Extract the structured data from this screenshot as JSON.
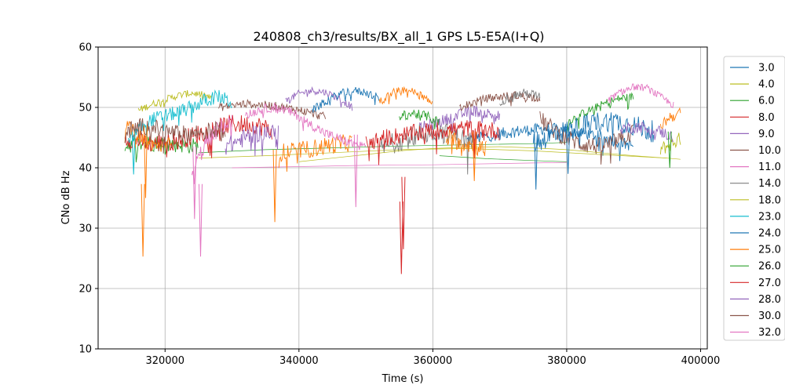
{
  "chart_data": {
    "type": "line",
    "title": "240808_ch3/results/BX_all_1 GPS L5-E5A(I+Q)",
    "xlabel": "Time (s)",
    "ylabel": "CNo dB Hz",
    "xlim": [
      310000,
      401000
    ],
    "ylim": [
      10,
      60
    ],
    "xticks": [
      320000,
      340000,
      360000,
      380000,
      400000
    ],
    "yticks": [
      10,
      20,
      30,
      40,
      50,
      60
    ],
    "grid": true,
    "legend_position": "outside-right",
    "series": [
      {
        "name": "3.0",
        "color": "#1f77b4",
        "segments": [
          {
            "x": [
              365000,
              366000,
              367000,
              368000,
              369000,
              370000,
              371000,
              372000,
              373000,
              374000,
              375000,
              376000,
              377000,
              378000,
              379000,
              380000,
              381000,
              382000,
              383000,
              384000,
              385000,
              386000,
              387000,
              388000,
              389000,
              390000
            ],
            "y": [
              44.5,
              44.8,
              45.0,
              45.2,
              45.4,
              45.6,
              45.8,
              46.0,
              46.1,
              46.2,
              46.3,
              46.4,
              46.5,
              46.4,
              46.3,
              46.2,
              46.0,
              45.8,
              45.6,
              45.4,
              45.1,
              44.8,
              44.5,
              44.2,
              43.9,
              43.6
            ],
            "noise": 1.0
          }
        ]
      },
      {
        "name": "4.0",
        "color": "#bcbd22",
        "segments": [
          {
            "x": [
              316000,
              318000,
              320000,
              322000,
              324000,
              326000,
              327000
            ],
            "y": [
              49.5,
              50.5,
              51.3,
              52.0,
              52.4,
              52.0,
              51.3
            ],
            "noise": 0.6
          },
          {
            "x": [
              325000,
              335000,
              345000,
              355000,
              365000,
              375000,
              385000,
              395000
            ],
            "y": [
              41.6,
              42.0,
              42.5,
              43.0,
              43.2,
              42.8,
              42.2,
              41.6
            ],
            "thin": true
          },
          {
            "x": [
              394000,
              395000,
              396000,
              397000
            ],
            "y": [
              43.0,
              43.6,
              44.2,
              44.8
            ],
            "noise": 1.2
          }
        ]
      },
      {
        "name": "6.0",
        "color": "#2ca02c",
        "segments": [
          {
            "x": [
              314000,
              318000,
              322000,
              325000
            ],
            "y": [
              43.8,
              44.1,
              43.9,
              43.5
            ],
            "noise": 1.4
          },
          {
            "x": [
              325000,
              335000,
              345000,
              355000,
              365000,
              375000,
              380000
            ],
            "y": [
              42.5,
              43.0,
              43.3,
              43.6,
              43.8,
              44.0,
              44.2
            ],
            "thin": true
          },
          {
            "x": [
              380000,
              382000,
              384000,
              386000,
              388000,
              390000
            ],
            "y": [
              47.5,
              48.8,
              49.8,
              50.8,
              51.5,
              51.8
            ],
            "noise": 0.7
          }
        ]
      },
      {
        "name": "8.0",
        "color": "#d62728",
        "segments": [
          {
            "x": [
              314000,
              318000,
              322000,
              326000,
              330000,
              334000,
              336000
            ],
            "y": [
              45.0,
              44.0,
              44.5,
              46.0,
              47.3,
              47.0,
              46.2
            ],
            "noise": 1.6
          }
        ]
      },
      {
        "name": "9.0",
        "color": "#9467bd",
        "segments": [
          {
            "x": [
              338000,
              340000,
              342000,
              344000,
              346000,
              348000
            ],
            "y": [
              51.0,
              52.3,
              52.8,
              52.5,
              51.5,
              50.0
            ],
            "noise": 0.6
          },
          {
            "x": [
              358000,
              362000,
              366000,
              370000
            ],
            "y": [
              46.5,
              48.0,
              49.5,
              48.5
            ],
            "noise": 1.0
          }
        ]
      },
      {
        "name": "10.0",
        "color": "#8c564b",
        "segments": [
          {
            "x": [
              328000,
              332000,
              336000,
              340000,
              344000
            ],
            "y": [
              50.0,
              50.6,
              50.3,
              49.6,
              48.4
            ],
            "noise": 0.7
          },
          {
            "x": [
              364000,
              368000,
              372000,
              376000
            ],
            "y": [
              50.0,
              51.5,
              52.0,
              51.6
            ],
            "noise": 0.7
          },
          {
            "x": [
              376000,
              379000,
              382000,
              385000,
              388000,
              390000
            ],
            "y": [
              48.0,
              45.5,
              44.0,
              43.5,
              44.5,
              46.0
            ],
            "noise": 1.5
          }
        ]
      },
      {
        "name": "11.0",
        "color": "#e377c2",
        "segments": [
          {
            "x": [
              324000,
              326000,
              328000,
              330000
            ],
            "y": [
              39.0,
              44.0,
              46.5,
              47.5
            ],
            "noise": 1.5
          },
          {
            "x": [
              330000,
              340000,
              350000,
              360000,
              370000,
              380000
            ],
            "y": [
              40.0,
              40.2,
              40.4,
              40.5,
              40.7,
              40.9
            ],
            "thin": true
          },
          {
            "x": [
              386000,
              388000,
              390000,
              392000,
              394000,
              396000
            ],
            "y": [
              51.0,
              52.5,
              53.4,
              53.2,
              51.8,
              50.3
            ],
            "noise": 0.6
          }
        ]
      },
      {
        "name": "14.0",
        "color": "#7f7f7f",
        "segments": [
          {
            "x": [
              352000,
              355000,
              358000,
              361000,
              364000,
              366000
            ],
            "y": [
              43.0,
              44.5,
              45.5,
              46.0,
              45.0,
              44.0
            ],
            "noise": 1.8
          },
          {
            "x": [
              370000,
              372000,
              374000,
              376000
            ],
            "y": [
              51.0,
              52.0,
              52.4,
              51.8
            ],
            "noise": 0.8
          }
        ]
      },
      {
        "name": "18.0",
        "color": "#bcbd22",
        "segments": [
          {
            "x": [
              340000,
              345000,
              350000,
              355000,
              360000,
              365000,
              370000,
              375000,
              380000,
              385000,
              390000,
              395000,
              397000
            ],
            "y": [
              41.0,
              41.6,
              42.2,
              42.8,
              43.2,
              43.4,
              43.5,
              43.3,
              43.0,
              42.5,
              42.0,
              41.6,
              41.4
            ],
            "thin": true
          }
        ]
      },
      {
        "name": "23.0",
        "color": "#17becf",
        "segments": [
          {
            "x": [
              314500,
              316000,
              318000,
              320000,
              322000,
              324000,
              326000,
              328000,
              330000
            ],
            "y": [
              44.0,
              46.5,
              48.0,
              48.6,
              49.2,
              50.0,
              51.2,
              51.8,
              50.8
            ],
            "noise": 1.2
          }
        ]
      },
      {
        "name": "24.0",
        "color": "#1f77b4",
        "segments": [
          {
            "x": [
              342000,
              344000,
              346000,
              348000,
              350000,
              352000
            ],
            "y": [
              49.5,
              51.0,
              52.2,
              52.8,
              52.5,
              51.5
            ],
            "noise": 0.7
          },
          {
            "x": [
              375000,
              378000,
              381000,
              384000,
              387000,
              390000,
              393000
            ],
            "y": [
              44.0,
              45.5,
              46.5,
              47.5,
              47.8,
              47.0,
              46.0
            ],
            "noise": 1.8
          }
        ]
      },
      {
        "name": "25.0",
        "color": "#ff7f0e",
        "segments": [
          {
            "x": [
              314000,
              316000,
              317000,
              319000,
              321000
            ],
            "y": [
              47.0,
              45.5,
              44.5,
              43.5,
              44.0
            ],
            "noise": 1.2
          },
          {
            "x": [
              337000,
              341000,
              345000,
              348000
            ],
            "y": [
              42.5,
              43.0,
              43.8,
              44.2
            ],
            "noise": 1.5
          },
          {
            "x": [
              352000,
              354000,
              356000,
              358000,
              360000
            ],
            "y": [
              51.0,
              52.5,
              53.0,
              52.3,
              50.5
            ],
            "noise": 0.6
          },
          {
            "x": [
              362000,
              365000,
              368000
            ],
            "y": [
              45.0,
              44.0,
              43.0
            ],
            "noise": 1.5
          },
          {
            "x": [
              394000,
              395500,
              397000
            ],
            "y": [
              47.0,
              48.5,
              49.0
            ],
            "noise": 1.0
          }
        ]
      },
      {
        "name": "26.0",
        "color": "#2ca02c",
        "segments": [
          {
            "x": [
              355000,
              357000,
              359000,
              361000
            ],
            "y": [
              48.5,
              49.0,
              48.6,
              47.5
            ],
            "noise": 0.8
          },
          {
            "x": [
              361000,
              368000,
              375000,
              380000
            ],
            "y": [
              42.0,
              41.5,
              41.2,
              41.0
            ],
            "thin": true
          }
        ]
      },
      {
        "name": "27.0",
        "color": "#d62728",
        "segments": [
          {
            "x": [
              350000,
              353000,
              356000,
              359000,
              362000,
              365000,
              368000,
              370000
            ],
            "y": [
              44.0,
              45.0,
              45.5,
              46.0,
              46.3,
              46.5,
              46.3,
              46.0
            ],
            "noise": 1.5
          }
        ]
      },
      {
        "name": "28.0",
        "color": "#9467bd",
        "segments": [
          {
            "x": [
              329000,
              331000,
              333000,
              335000,
              337000
            ],
            "y": [
              43.5,
              44.5,
              45.5,
              46.0,
              45.5
            ],
            "noise": 1.5
          },
          {
            "x": [
              388000,
              391000,
              394000,
              396000
            ],
            "y": [
              46.5,
              46.8,
              46.0,
              45.0
            ],
            "noise": 1.0
          }
        ]
      },
      {
        "name": "30.0",
        "color": "#8c564b",
        "segments": [
          {
            "x": [
              314000,
              317000,
              320000,
              323000,
              326000,
              329000
            ],
            "y": [
              46.0,
              47.0,
              46.0,
              45.5,
              46.0,
              46.5
            ],
            "noise": 1.5
          }
        ]
      },
      {
        "name": "32.0",
        "color": "#e377c2",
        "segments": [
          {
            "x": [
              332000,
              334000,
              336000,
              338000,
              340000,
              342000,
              344000,
              346000,
              348000,
              350000
            ],
            "y": [
              48.5,
              49.6,
              50.0,
              49.6,
              48.5,
              47.0,
              45.7,
              44.8,
              44.0,
              43.5
            ],
            "noise": 0.8
          }
        ]
      }
    ],
    "dips": [
      {
        "series": "25.0",
        "x": 316700,
        "y": 25.3
      },
      {
        "series": "25.0",
        "x": 317100,
        "y": 35.0
      },
      {
        "series": "11.0",
        "x": 324400,
        "y": 31.5
      },
      {
        "series": "11.0",
        "x": 325300,
        "y": 25.3
      },
      {
        "series": "25.0",
        "x": 336400,
        "y": 31.0
      },
      {
        "series": "32.0",
        "x": 348500,
        "y": 33.5
      },
      {
        "series": "27.0",
        "x": 355300,
        "y": 22.4
      },
      {
        "series": "27.0",
        "x": 355600,
        "y": 26.5
      },
      {
        "series": "24.0",
        "x": 375400,
        "y": 36.4
      },
      {
        "series": "25.0",
        "x": 366200,
        "y": 37.8
      },
      {
        "series": "23.0",
        "x": 315300,
        "y": 38.9
      },
      {
        "series": "6.0",
        "x": 395400,
        "y": 40.0
      },
      {
        "series": "24.0",
        "x": 380200,
        "y": 39.0
      }
    ]
  }
}
